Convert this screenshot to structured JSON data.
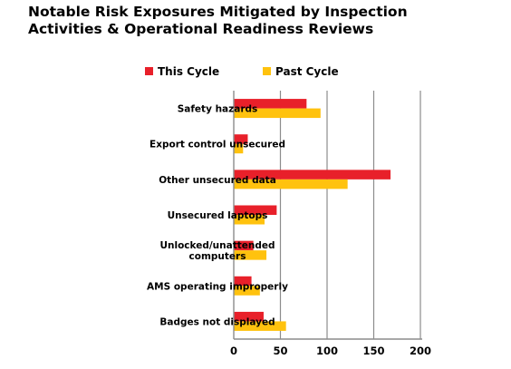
{
  "chart_data": {
    "type": "bar",
    "orientation": "horizontal",
    "title_lines": [
      "Notable Risk Exposures Mitigated by Inspection",
      "Activities & Operational Readiness Reviews"
    ],
    "categories": [
      [
        "Safety hazards"
      ],
      [
        "Export control unsecured"
      ],
      [
        "Other unsecured data"
      ],
      [
        "Unsecured laptops"
      ],
      [
        "Unlocked/unattended",
        "computers"
      ],
      [
        "AMS operating improperly"
      ],
      [
        "Badges not displayed"
      ]
    ],
    "series": [
      {
        "name": "This Cycle",
        "color": "#e8202a",
        "values": [
          78,
          15,
          168,
          46,
          21,
          19,
          32
        ]
      },
      {
        "name": "Past Cycle",
        "color": "#ffc20e",
        "values": [
          93,
          10,
          122,
          33,
          35,
          28,
          56
        ]
      }
    ],
    "xlim": [
      0,
      200
    ],
    "xticks": [
      "0",
      "50",
      "100",
      "150",
      "200"
    ],
    "grid": "vertical",
    "legend_position": "top"
  }
}
